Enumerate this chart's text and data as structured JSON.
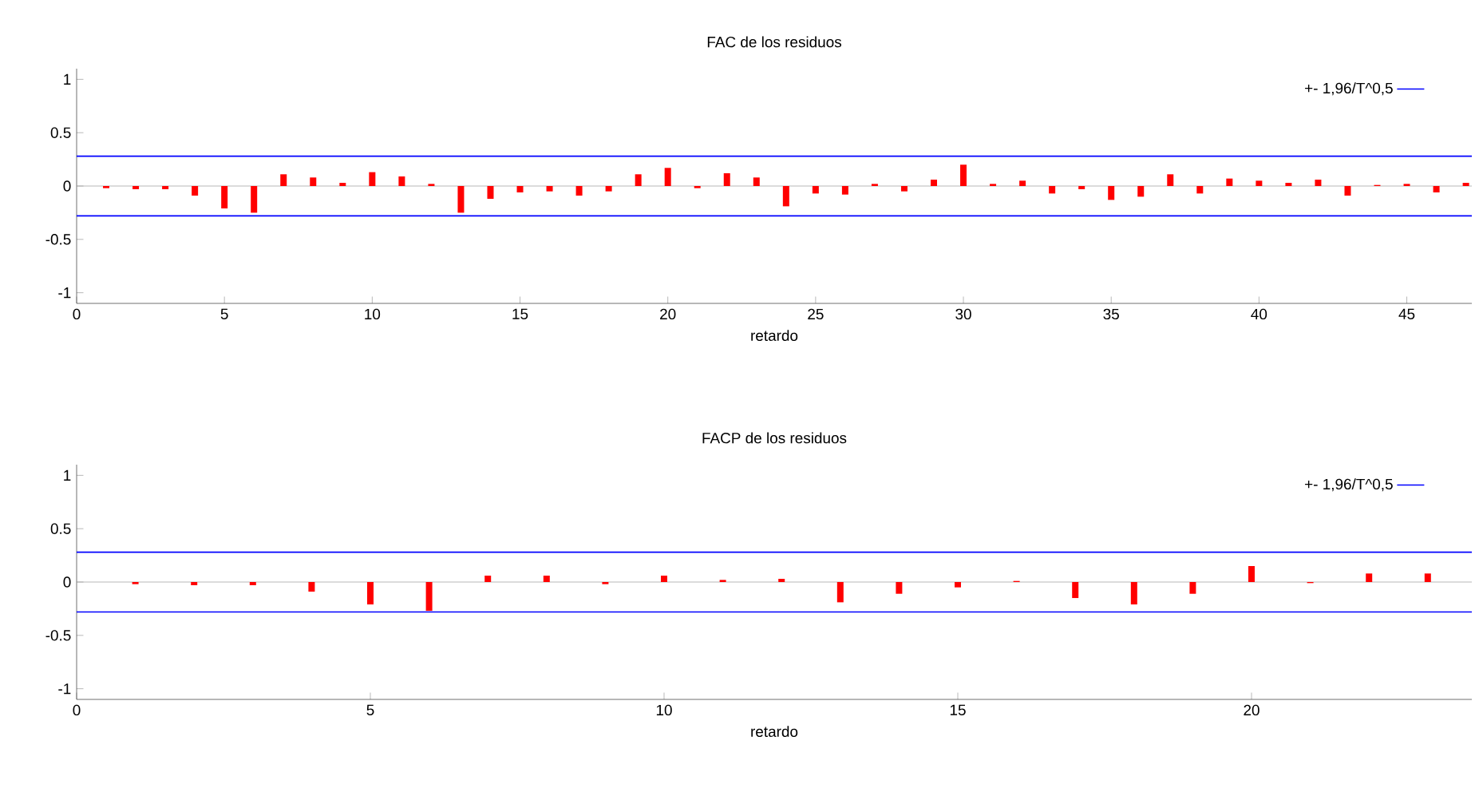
{
  "chart_data": [
    {
      "type": "bar",
      "title": "FAC de los residuos",
      "xlabel": "retardo",
      "color": "#ff0000",
      "x": [
        1,
        2,
        3,
        4,
        5,
        6,
        7,
        8,
        9,
        10,
        11,
        12,
        13,
        14,
        15,
        16,
        17,
        18,
        19,
        20,
        21,
        22,
        23,
        24,
        25,
        26,
        27,
        28,
        29,
        30,
        31,
        32,
        33,
        34,
        35,
        36,
        37,
        38,
        39,
        40,
        41,
        42,
        43,
        44,
        45,
        46,
        47
      ],
      "values": [
        -0.02,
        -0.03,
        -0.03,
        -0.09,
        -0.21,
        -0.25,
        0.11,
        0.08,
        0.03,
        0.13,
        0.09,
        0.02,
        -0.25,
        -0.12,
        -0.06,
        -0.05,
        -0.09,
        -0.05,
        0.11,
        0.17,
        -0.02,
        0.12,
        0.08,
        -0.19,
        -0.07,
        -0.08,
        0.02,
        -0.05,
        0.06,
        0.2,
        0.02,
        0.05,
        -0.07,
        -0.03,
        -0.13,
        -0.1,
        0.11,
        -0.07,
        0.07,
        0.05,
        0.03,
        0.06,
        -0.09,
        0.01,
        0.02,
        -0.06,
        0.03
      ],
      "xlim": [
        0,
        47.2
      ],
      "ylim": [
        -1.1,
        1.1
      ],
      "xticks": [
        0,
        5,
        10,
        15,
        20,
        25,
        30,
        35,
        40,
        45
      ],
      "yticks": [
        -1,
        -0.5,
        0,
        0.5,
        1
      ],
      "ref_lines": [
        {
          "axis": "y",
          "value": 0.28,
          "label": "+- 1,96/T^0,5",
          "color": "#0000ff"
        },
        {
          "axis": "y",
          "value": -0.28,
          "color": "#0000ff"
        }
      ],
      "legend": "top right"
    },
    {
      "type": "bar",
      "title": "FACP de los residuos",
      "xlabel": "retardo",
      "color": "#ff0000",
      "x": [
        1,
        2,
        3,
        4,
        5,
        6,
        7,
        8,
        9,
        10,
        11,
        12,
        13,
        14,
        15,
        16,
        17,
        18,
        19,
        20,
        21,
        22,
        23
      ],
      "values": [
        -0.02,
        -0.03,
        -0.03,
        -0.09,
        -0.21,
        -0.27,
        0.06,
        0.06,
        -0.02,
        0.06,
        0.02,
        0.03,
        -0.19,
        -0.11,
        -0.05,
        0.01,
        -0.15,
        -0.21,
        -0.11,
        0.15,
        -0.01,
        0.08,
        0.08
      ],
      "xlim": [
        0,
        23.75
      ],
      "ylim": [
        -1.1,
        1.1
      ],
      "xticks": [
        0,
        5,
        10,
        15,
        20
      ],
      "yticks": [
        -1,
        -0.5,
        0,
        0.5,
        1
      ],
      "ref_lines": [
        {
          "axis": "y",
          "value": 0.28,
          "label": "+- 1,96/T^0,5",
          "color": "#0000ff"
        },
        {
          "axis": "y",
          "value": -0.28,
          "color": "#0000ff"
        }
      ],
      "legend": "top right"
    }
  ]
}
